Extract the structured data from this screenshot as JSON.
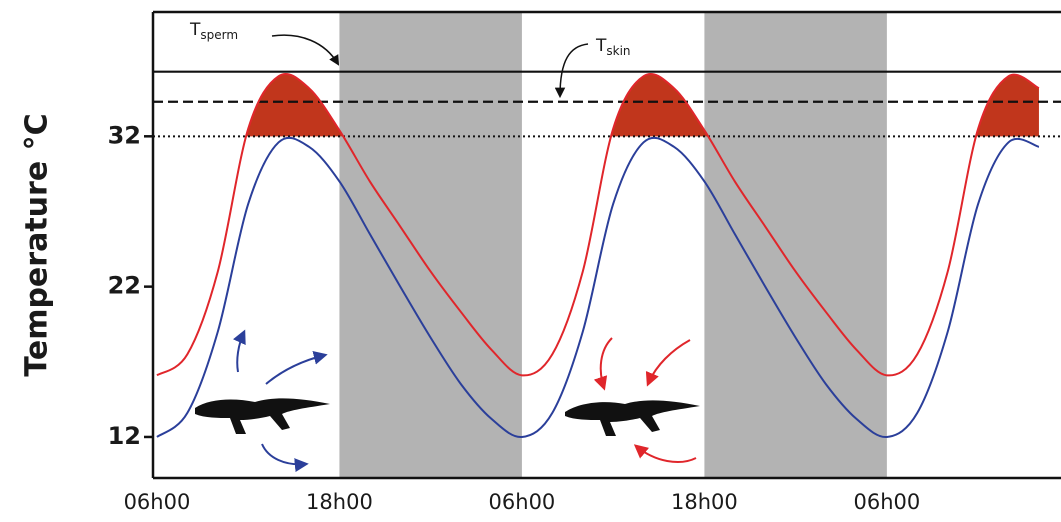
{
  "chart_data": {
    "type": "line",
    "ylabel": "Temperature °C",
    "x": [
      6,
      8,
      10,
      12,
      14,
      16,
      18,
      20,
      22,
      24,
      26,
      28,
      30,
      32,
      34,
      36,
      38,
      40,
      42,
      44,
      46,
      48,
      50,
      52,
      54,
      56,
      58,
      60,
      62,
      64
    ],
    "series": [
      {
        "color": "#e0262b",
        "values": [
          16.1,
          17.5,
          23,
          32.5,
          36,
          35.2,
          32.4,
          29,
          26,
          23,
          20.3,
          17.8,
          16.1,
          17.5,
          23,
          32.5,
          36,
          35.2,
          32.4,
          29,
          26,
          23,
          20.3,
          17.8,
          16.1,
          17.5,
          23,
          32.5,
          36,
          35.2
        ]
      },
      {
        "color": "#2b3f9a",
        "values": [
          12,
          13.6,
          19,
          27.5,
          31.6,
          31.3,
          29,
          25.5,
          22,
          18.6,
          15.5,
          13.2,
          12,
          13.6,
          19,
          27.5,
          31.6,
          31.3,
          29,
          25.5,
          22,
          18.6,
          15.5,
          13.2,
          12,
          13.6,
          19,
          27.5,
          31.6,
          31.3
        ]
      }
    ],
    "fill_above": {
      "value": 32,
      "color": "#c1361c"
    },
    "reference_lines": [
      {
        "value": 36.3,
        "style": "solid",
        "label": "T",
        "label_sub": "sperm"
      },
      {
        "value": 34.3,
        "style": "dashed",
        "label": "T",
        "label_sub": "skin"
      },
      {
        "value": 32,
        "style": "dotted"
      }
    ],
    "shaded_ranges": [
      [
        18,
        30
      ],
      [
        42,
        54
      ]
    ],
    "shade_color": "#b3b3b3",
    "xlim": [
      5.74,
      65.45
    ],
    "ylim": [
      9.27,
      40.27
    ],
    "xticks": [
      {
        "value": 6,
        "label": "06h00"
      },
      {
        "value": 18,
        "label": "18h00"
      },
      {
        "value": 30,
        "label": "06h00"
      },
      {
        "value": 42,
        "label": "18h00"
      },
      {
        "value": 54,
        "label": "06h00"
      }
    ],
    "yticks": [
      12,
      22,
      32
    ]
  }
}
